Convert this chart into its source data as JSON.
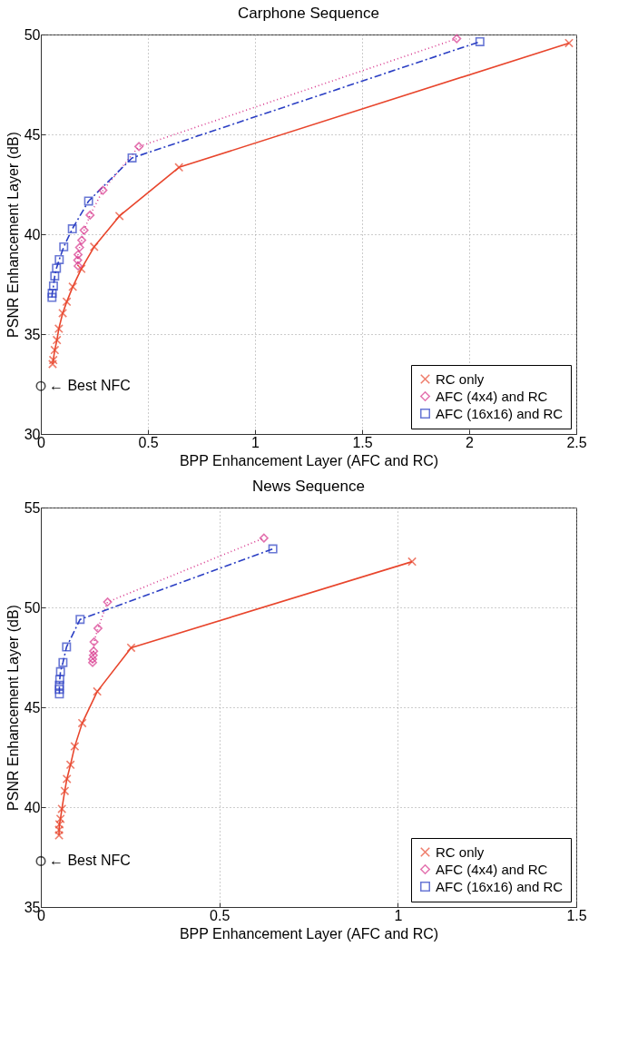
{
  "chart_data": [
    {
      "type": "line",
      "title": "Carphone Sequence",
      "xlabel": "BPP Enhancement Layer (AFC and RC)",
      "ylabel": "PSNR Enhancement Layer (dB)",
      "xlim": [
        0,
        2.5
      ],
      "ylim": [
        30,
        50
      ],
      "xticks": [
        0,
        0.5,
        1,
        1.5,
        2,
        2.5
      ],
      "yticks": [
        30,
        35,
        40,
        45,
        50
      ],
      "grid": true,
      "legend": "bottom right",
      "annotations": [
        {
          "text": "← Best NFC",
          "x": 0,
          "y": 32.4
        }
      ],
      "series": [
        {
          "name": "RC only",
          "color": "#e8452c",
          "marker": "cross",
          "line_style": "solid",
          "x": [
            0.055,
            0.058,
            0.065,
            0.075,
            0.084,
            0.102,
            0.121,
            0.149,
            0.189,
            0.249,
            0.367,
            0.645,
            2.466
          ],
          "values": [
            33.5,
            33.7,
            34.2,
            34.7,
            35.27,
            36.05,
            36.62,
            37.37,
            38.27,
            39.37,
            40.91,
            43.35,
            49.57
          ]
        },
        {
          "name": "AFC (4x4) and RC",
          "color": "#d8398e",
          "marker": "diamond",
          "line_style": "dotted",
          "x": [
            0.174,
            0.172,
            0.174,
            0.181,
            0.191,
            0.202,
            0.23,
            0.29,
            0.458,
            1.942
          ],
          "values": [
            38.41,
            38.7,
            38.98,
            39.34,
            39.7,
            40.2,
            40.96,
            42.2,
            44.39,
            49.79
          ]
        },
        {
          "name": "AFC (16x16) and RC",
          "color": "#2b3fc4",
          "marker": "square",
          "line_style": "dashed",
          "x": [
            0.052,
            0.053,
            0.059,
            0.065,
            0.073,
            0.086,
            0.107,
            0.147,
            0.223,
            0.426,
            2.05
          ],
          "values": [
            36.84,
            37.05,
            37.41,
            37.91,
            38.3,
            38.73,
            39.37,
            40.27,
            41.66,
            43.82,
            49.64
          ]
        },
        {
          "type": "scatter",
          "color": "#000000",
          "marker": "circle",
          "x": [
            0
          ],
          "values": [
            32.4
          ]
        }
      ]
    },
    {
      "type": "line",
      "title": "News Sequence",
      "xlabel": "BPP Enhancement Layer (AFC and RC)",
      "ylabel": "PSNR Enhancement Layer (dB)",
      "xlim": [
        0,
        1.5
      ],
      "ylim": [
        35,
        55
      ],
      "xticks": [
        0,
        0.5,
        1,
        1.5
      ],
      "yticks": [
        35,
        40,
        45,
        50,
        55
      ],
      "grid": true,
      "legend": "bottom right",
      "annotations": [
        {
          "text": "← Best NFC",
          "x": 0,
          "y": 37.3
        }
      ],
      "series": [
        {
          "name": "RC only",
          "color": "#e8452c",
          "marker": "cross",
          "line_style": "solid",
          "x": [
            0.051,
            0.051,
            0.052,
            0.055,
            0.059,
            0.067,
            0.073,
            0.083,
            0.095,
            0.116,
            0.158,
            0.253,
            1.04
          ],
          "values": [
            38.59,
            38.86,
            39.14,
            39.41,
            39.91,
            40.81,
            41.41,
            42.12,
            43.04,
            44.21,
            45.79,
            47.98,
            52.29
          ]
        },
        {
          "name": "AFC (4x4) and RC",
          "color": "#d8398e",
          "marker": "diamond",
          "line_style": "dotted",
          "x": [
            0.145,
            0.145,
            0.147,
            0.148,
            0.149,
            0.16,
            0.187,
            0.625
          ],
          "values": [
            47.24,
            47.41,
            47.6,
            47.81,
            48.27,
            48.95,
            50.27,
            53.47
          ]
        },
        {
          "name": "AFC (16x16) and RC",
          "color": "#2b3fc4",
          "marker": "square",
          "line_style": "dashed",
          "x": [
            0.052,
            0.052,
            0.052,
            0.053,
            0.055,
            0.062,
            0.072,
            0.11,
            0.65
          ],
          "values": [
            45.67,
            45.9,
            46.1,
            46.39,
            46.78,
            47.24,
            48.02,
            49.4,
            52.93
          ]
        },
        {
          "type": "scatter",
          "color": "#000000",
          "marker": "circle",
          "x": [
            0
          ],
          "values": [
            37.3
          ]
        }
      ]
    }
  ]
}
